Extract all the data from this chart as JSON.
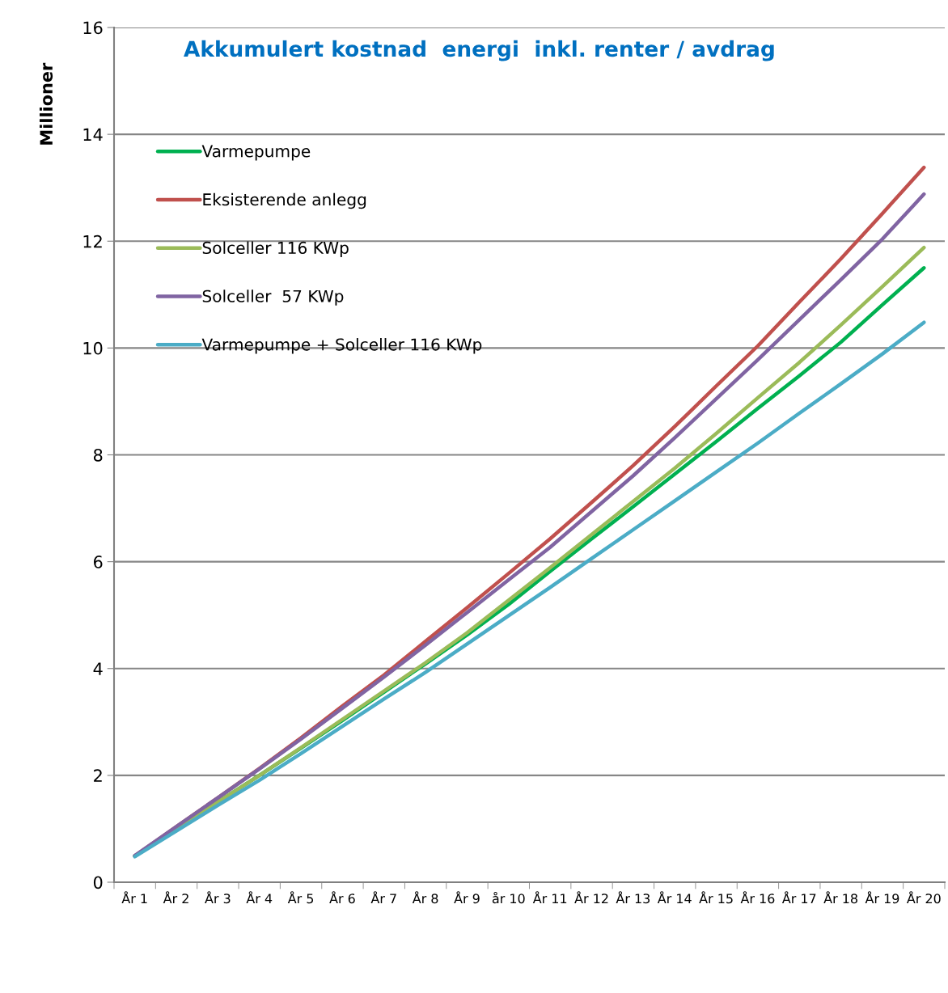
{
  "chart_data": {
    "type": "line",
    "title": "Akkumulert kostnad  energi  inkl. renter / avdrag",
    "ylabel": "Millioner",
    "categories": [
      "År 1",
      "År 2",
      "År 3",
      "År 4",
      "År 5",
      "År 6",
      "År 7",
      "År 8",
      "År 9",
      "år 10",
      "År 11",
      "År 12",
      "År 13",
      "År 14",
      "År 15",
      "År 16",
      "År 17",
      "År 18",
      "År 19",
      "År 20"
    ],
    "series": [
      {
        "name": "Varmepumpe",
        "color": "#00b050",
        "values": [
          0.49,
          1.0,
          1.5,
          2.0,
          2.51,
          3.03,
          3.56,
          4.09,
          4.63,
          5.2,
          5.82,
          6.43,
          7.03,
          7.64,
          8.25,
          8.87,
          9.48,
          10.11,
          10.81,
          11.5
        ]
      },
      {
        "name": "Eksisterende anlegg",
        "color": "#c0504d",
        "values": [
          0.49,
          1.04,
          1.58,
          2.13,
          2.7,
          3.3,
          3.88,
          4.51,
          5.14,
          5.78,
          6.43,
          7.11,
          7.8,
          8.53,
          9.29,
          10.04,
          10.86,
          11.67,
          12.52,
          13.38
        ]
      },
      {
        "name": "Solceller 116 KWp",
        "color": "#9bbb59",
        "values": [
          0.49,
          1.0,
          1.5,
          2.0,
          2.52,
          3.05,
          3.58,
          4.11,
          4.67,
          5.28,
          5.89,
          6.51,
          7.13,
          7.75,
          8.4,
          9.07,
          9.73,
          10.43,
          11.15,
          11.88
        ]
      },
      {
        "name": "Solceller  57 KWp",
        "color": "#8064a2",
        "values": [
          0.5,
          1.04,
          1.58,
          2.12,
          2.68,
          3.26,
          3.84,
          4.44,
          5.05,
          5.66,
          6.27,
          6.94,
          7.61,
          8.32,
          9.05,
          9.78,
          10.53,
          11.28,
          12.04,
          12.88
        ]
      },
      {
        "name": "Varmepumpe + Solceller 116 KWp",
        "color": "#4bacc6",
        "values": [
          0.48,
          0.96,
          1.44,
          1.91,
          2.41,
          2.92,
          3.43,
          3.93,
          4.46,
          4.99,
          5.52,
          6.06,
          6.6,
          7.14,
          7.68,
          8.22,
          8.78,
          9.33,
          9.89,
          10.48
        ]
      }
    ],
    "ylim": [
      0,
      16
    ],
    "yticks": [
      0,
      2,
      4,
      6,
      8,
      10,
      12,
      14,
      16
    ],
    "grid": "y",
    "legend": "top left",
    "marker": "none",
    "line_style": "solid"
  }
}
